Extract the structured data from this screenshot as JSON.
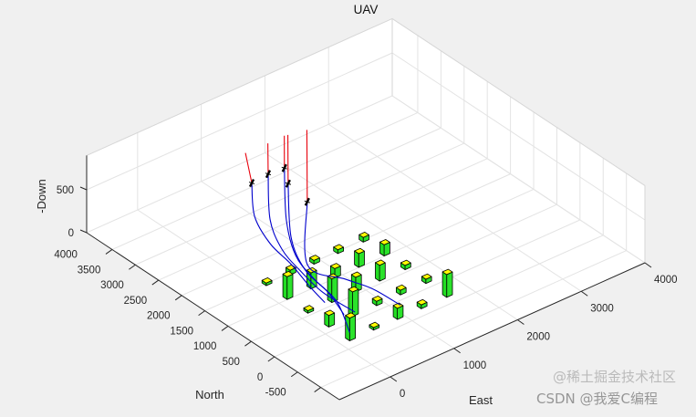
{
  "chart_data": {
    "type": "3d-line+bar3",
    "title": "UAV",
    "xlabel": "North",
    "ylabel": "East",
    "zlabel": "-Down",
    "north_lim": [
      -900,
      4550
    ],
    "east_lim": [
      -800,
      4000
    ],
    "down_lim": [
      0,
      900
    ],
    "north_ticks": [
      -500,
      0,
      500,
      1000,
      1500,
      2000,
      2500,
      3000,
      3500,
      4000
    ],
    "east_ticks": [
      0,
      1000,
      2000,
      3000,
      4000
    ],
    "down_ticks": [
      0,
      500
    ],
    "grid": true,
    "colors": {
      "climb": "#e8000b",
      "path": "#0000cc",
      "building_side": "#22dd22",
      "building_top": "#ffff00",
      "marker": "#000000"
    },
    "buildings": [
      {
        "north": 2000,
        "east": 175,
        "height": 30
      },
      {
        "north": 2000,
        "east": 550,
        "height": 55
      },
      {
        "north": 2000,
        "east": 925,
        "height": 45
      },
      {
        "north": 2000,
        "east": 1300,
        "height": 45
      },
      {
        "north": 2000,
        "east": 1700,
        "height": 55
      },
      {
        "north": 1550,
        "east": 175,
        "height": 265
      },
      {
        "north": 1550,
        "east": 550,
        "height": 185
      },
      {
        "north": 1550,
        "east": 925,
        "height": 110
      },
      {
        "north": 1550,
        "east": 1300,
        "height": 160
      },
      {
        "north": 1550,
        "east": 1700,
        "height": 130
      },
      {
        "north": 1100,
        "east": 175,
        "height": 30
      },
      {
        "north": 1100,
        "east": 550,
        "height": 275
      },
      {
        "north": 1100,
        "east": 925,
        "height": 170
      },
      {
        "north": 1100,
        "east": 1300,
        "height": 185
      },
      {
        "north": 1100,
        "east": 1700,
        "height": 50
      },
      {
        "north": 650,
        "east": 175,
        "height": 135
      },
      {
        "north": 650,
        "east": 550,
        "height": 285
      },
      {
        "north": 650,
        "east": 925,
        "height": 50
      },
      {
        "north": 650,
        "east": 1300,
        "height": 55
      },
      {
        "north": 650,
        "east": 1700,
        "height": 50
      },
      {
        "north": 200,
        "east": 175,
        "height": 265
      },
      {
        "north": 200,
        "east": 550,
        "height": 30
      },
      {
        "north": 200,
        "east": 925,
        "height": 130
      },
      {
        "north": 200,
        "east": 1300,
        "height": 45
      },
      {
        "north": 200,
        "east": 1700,
        "height": 265
      }
    ],
    "trajectories": [
      {
        "red": [
          [
            3350,
            820,
            820
          ],
          [
            3085,
            727,
            595
          ]
        ],
        "blue": [
          [
            3085,
            727,
            595
          ],
          [
            2713,
            501,
            412
          ],
          [
            2276,
            428,
            275
          ],
          [
            1879,
            467,
            165
          ],
          [
            1418,
            417,
            92
          ],
          [
            1052,
            395,
            37
          ]
        ]
      },
      {
        "red": [
          [
            3340,
            1165,
            820
          ],
          [
            3041,
            952,
            641
          ]
        ],
        "blue": [
          [
            3041,
            952,
            641
          ],
          [
            2520,
            603,
            412
          ],
          [
            2065,
            459,
            275
          ],
          [
            1657,
            449,
            174
          ],
          [
            1173,
            454,
            92
          ],
          [
            606,
            542,
            37
          ]
        ]
      },
      {
        "red": [
          [
            3345,
            1427,
            820
          ],
          [
            3015,
            1188,
            641
          ]
        ],
        "blue": [
          [
            3015,
            1188,
            641
          ],
          [
            2373,
            751,
            412
          ],
          [
            1854,
            521,
            256
          ],
          [
            1411,
            485,
            156
          ],
          [
            910,
            478,
            73
          ],
          [
            255,
            204,
            37
          ]
        ]
      },
      {
        "red": [
          [
            3330,
            1472,
            820
          ],
          [
            2756,
            1058,
            595
          ]
        ],
        "blue": [
          [
            2756,
            1058,
            595
          ],
          [
            2070,
            605,
            366
          ],
          [
            1599,
            478,
            201
          ],
          [
            1114,
            483,
            110
          ],
          [
            635,
            392,
            46
          ]
        ]
      },
      {
        "red": [
          [
            3262,
            1721,
            820
          ],
          [
            2235,
            979,
            595
          ]
        ],
        "blue": [
          [
            2235,
            979,
            595
          ],
          [
            1659,
            565,
            201
          ],
          [
            1158,
            799,
            137
          ],
          [
            807,
            971,
            92
          ],
          [
            315,
            1044,
            55
          ]
        ]
      }
    ]
  },
  "watermark": {
    "csdn": "CSDN @我爱C编程",
    "juejin": "@稀土掘金技术社区"
  }
}
